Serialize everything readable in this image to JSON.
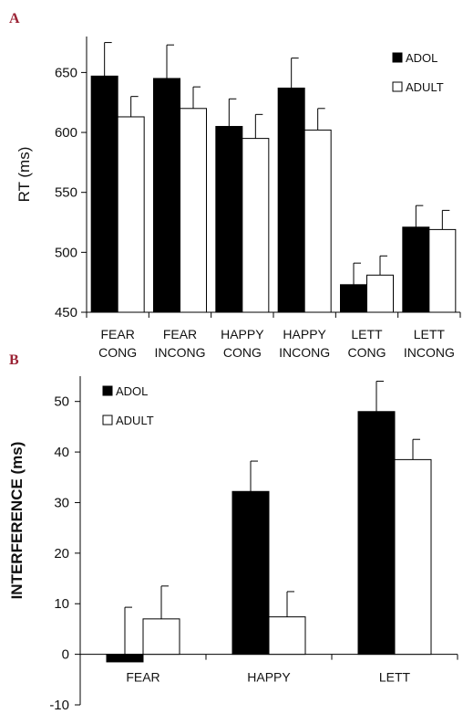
{
  "chart_data": [
    {
      "panel": "A",
      "type": "bar",
      "ylabel": "RT  (ms)",
      "ylim": [
        450,
        680
      ],
      "yticks": [
        450,
        500,
        550,
        600,
        650
      ],
      "categories": [
        [
          "FEAR",
          "CONG"
        ],
        [
          "FEAR",
          "INCONG"
        ],
        [
          "HAPPY",
          "CONG"
        ],
        [
          "HAPPY",
          "INCONG"
        ],
        [
          "LETT",
          "CONG"
        ],
        [
          "LETT",
          "INCONG"
        ]
      ],
      "series": [
        {
          "name": "ADOL",
          "color": "#000000",
          "values": [
            647,
            645,
            605,
            637,
            473,
            521
          ],
          "errors": [
            28,
            28,
            23,
            25,
            18,
            18
          ]
        },
        {
          "name": "ADULT",
          "color": "#ffffff",
          "values": [
            613,
            620,
            595,
            602,
            481,
            519
          ],
          "errors": [
            17,
            18,
            20,
            18,
            16,
            16
          ]
        }
      ],
      "legend": "top-right",
      "grid": false
    },
    {
      "panel": "B",
      "type": "bar",
      "ylabel": "INTERFERENCE (ms)",
      "ylim": [
        -10,
        55
      ],
      "yticks": [
        -10,
        0,
        10,
        20,
        30,
        40,
        50
      ],
      "categories": [
        "FEAR",
        "HAPPY",
        "LETT"
      ],
      "series": [
        {
          "name": "ADOL",
          "color": "#000000",
          "values": [
            -1.5,
            32.2,
            48
          ],
          "errors": [
            9.3,
            6,
            6
          ]
        },
        {
          "name": "ADULT",
          "color": "#ffffff",
          "values": [
            7,
            7.4,
            38.5
          ],
          "errors": [
            6.5,
            5,
            4
          ]
        }
      ],
      "legend": "top-left",
      "grid": false
    }
  ]
}
